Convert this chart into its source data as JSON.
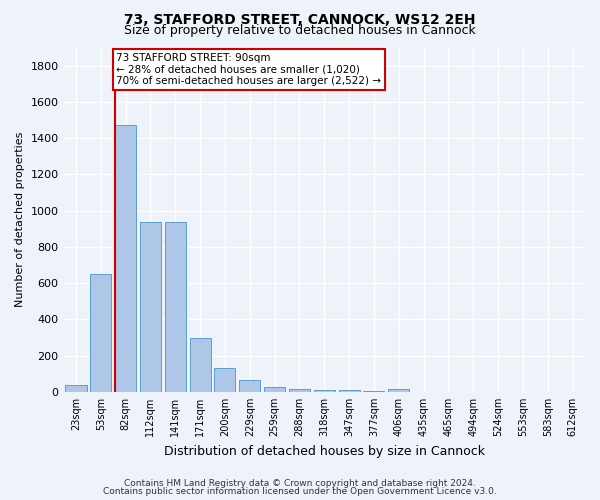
{
  "title1": "73, STAFFORD STREET, CANNOCK, WS12 2EH",
  "title2": "Size of property relative to detached houses in Cannock",
  "xlabel": "Distribution of detached houses by size in Cannock",
  "ylabel": "Number of detached properties",
  "categories": [
    "23sqm",
    "53sqm",
    "82sqm",
    "112sqm",
    "141sqm",
    "171sqm",
    "200sqm",
    "229sqm",
    "259sqm",
    "288sqm",
    "318sqm",
    "347sqm",
    "377sqm",
    "406sqm",
    "435sqm",
    "465sqm",
    "494sqm",
    "524sqm",
    "553sqm",
    "583sqm",
    "612sqm"
  ],
  "values": [
    40,
    650,
    1470,
    940,
    940,
    295,
    130,
    65,
    25,
    15,
    10,
    10,
    5,
    15,
    0,
    0,
    0,
    0,
    0,
    0,
    0
  ],
  "bar_color": "#aec6e8",
  "bar_edge_color": "#5a9fd4",
  "vline_color": "#cc0000",
  "annotation_text": "73 STAFFORD STREET: 90sqm\n← 28% of detached houses are smaller (1,020)\n70% of semi-detached houses are larger (2,522) →",
  "annotation_box_color": "#ffffff",
  "annotation_box_edge": "#cc0000",
  "ylim": [
    0,
    1900
  ],
  "yticks": [
    0,
    200,
    400,
    600,
    800,
    1000,
    1200,
    1400,
    1600,
    1800
  ],
  "footer1": "Contains HM Land Registry data © Crown copyright and database right 2024.",
  "footer2": "Contains public sector information licensed under the Open Government Licence v3.0.",
  "bg_color": "#eef2f9",
  "grid_color": "#ffffff"
}
